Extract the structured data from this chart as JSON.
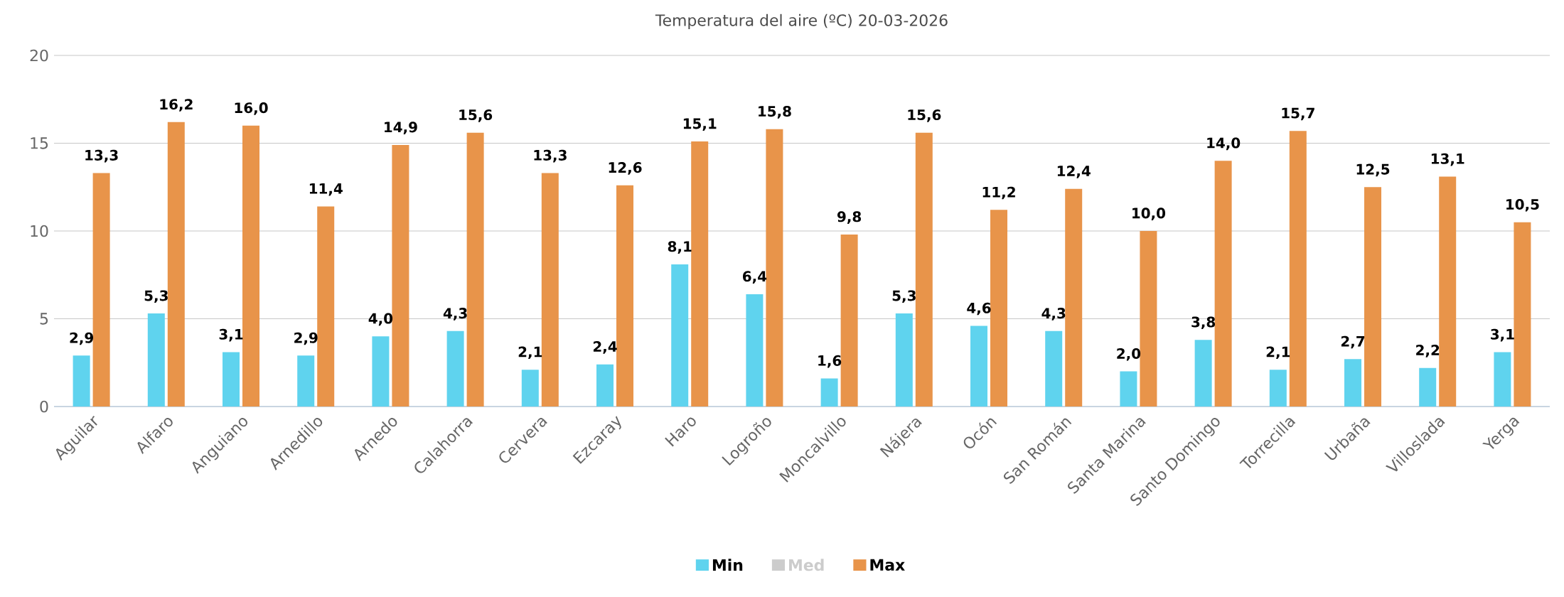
{
  "chart_data": {
    "type": "bar",
    "title": "Temperatura del aire (ºC) 20-03-2026",
    "categories": [
      "Aguilar",
      "Alfaro",
      "Anguiano",
      "Arnedillo",
      "Arnedo",
      "Calahorra",
      "Cervera",
      "Ezcaray",
      "Haro",
      "Logroño",
      "Moncalvillo",
      "Nájera",
      "Ocón",
      "San Román",
      "Santa Marina",
      "Santo Domingo",
      "Torrecilla",
      "Urbaña",
      "Villoslada",
      "Yerga"
    ],
    "series": [
      {
        "name": "Min",
        "color": "#5fd3ee",
        "values": [
          2.9,
          5.3,
          3.1,
          2.9,
          4.0,
          4.3,
          2.1,
          2.4,
          8.1,
          6.4,
          1.6,
          5.3,
          4.6,
          4.3,
          2.0,
          3.8,
          2.1,
          2.7,
          2.2,
          3.1
        ],
        "value_labels": [
          "2,9",
          "5,3",
          "3,1",
          "2,9",
          "4,0",
          "4,3",
          "2,1",
          "2,4",
          "8,1",
          "6,4",
          "1,6",
          "5,3",
          "4,6",
          "4,3",
          "2,0",
          "3,8",
          "2,1",
          "2,7",
          "2,2",
          "3,1"
        ]
      },
      {
        "name": "Med",
        "color": "#cccccc",
        "values": [
          null,
          null,
          null,
          null,
          null,
          null,
          null,
          null,
          null,
          null,
          null,
          null,
          null,
          null,
          null,
          null,
          null,
          null,
          null,
          null
        ]
      },
      {
        "name": "Max",
        "color": "#e8944a",
        "values": [
          13.3,
          16.2,
          16.0,
          11.4,
          14.9,
          15.6,
          13.3,
          12.6,
          15.1,
          15.8,
          9.8,
          15.6,
          11.2,
          12.4,
          10.0,
          14.0,
          15.7,
          12.5,
          13.1,
          10.5
        ],
        "value_labels": [
          "13,3",
          "16,2",
          "16,0",
          "11,4",
          "14,9",
          "15,6",
          "13,3",
          "12,6",
          "15,1",
          "15,8",
          "9,8",
          "15,6",
          "11,2",
          "12,4",
          "10,0",
          "14,0",
          "15,7",
          "12,5",
          "13,1",
          "10,5"
        ]
      }
    ],
    "ylim": [
      0,
      20
    ],
    "yticks": [
      0,
      5,
      10,
      15,
      20
    ],
    "grid": "y",
    "legend": "bottom"
  }
}
